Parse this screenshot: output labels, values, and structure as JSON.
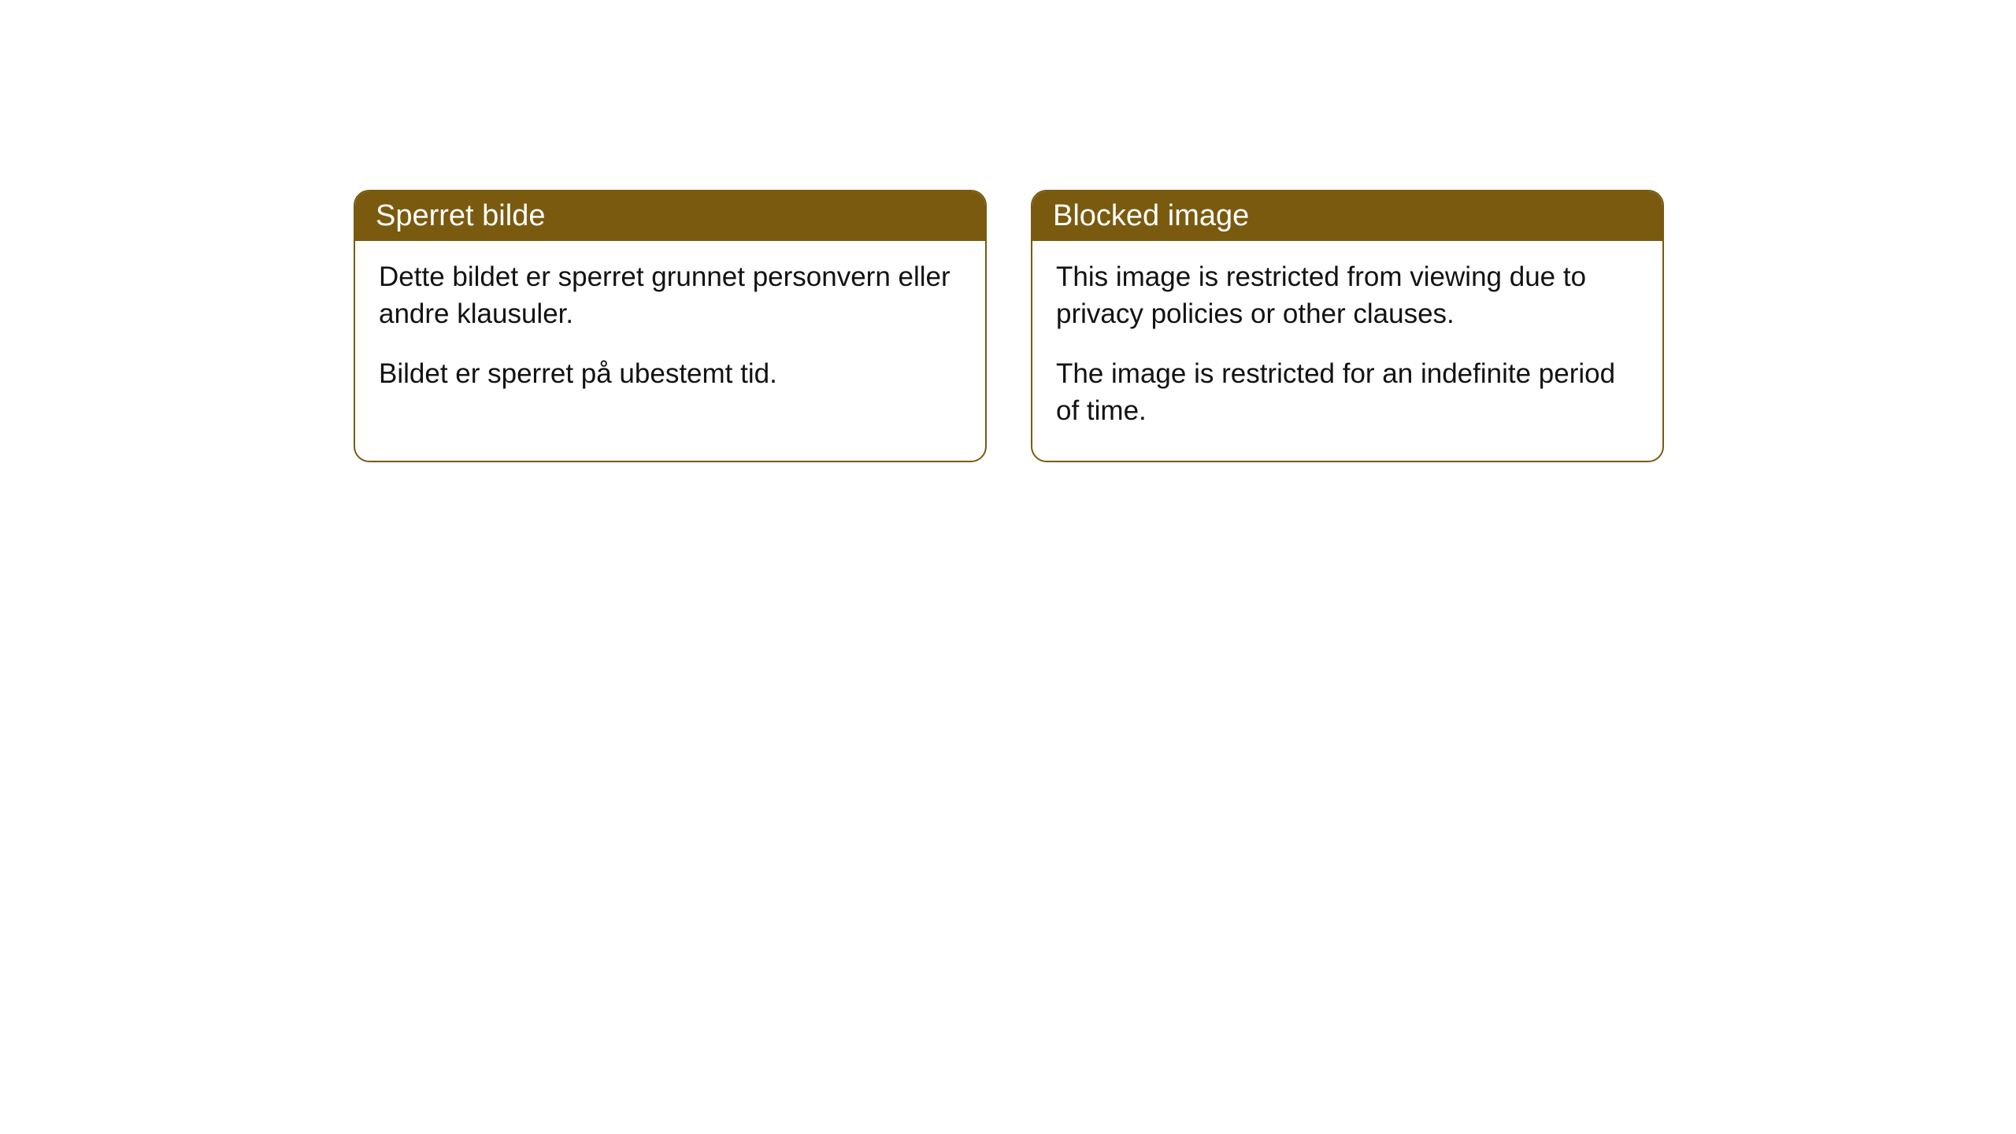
{
  "cards": [
    {
      "title": "Sperret bilde",
      "paragraph1": "Dette bildet er sperret grunnet personvern eller andre klausuler.",
      "paragraph2": "Bildet er sperret på ubestemt tid."
    },
    {
      "title": "Blocked image",
      "paragraph1": "This image is restricted from viewing due to privacy policies or other clauses.",
      "paragraph2": "The image is restricted for an indefinite period of time."
    }
  ],
  "style": {
    "header_bg": "#7a5a0f",
    "header_text_color": "#ffffff",
    "border_color": "#7a5a0f",
    "body_bg": "#ffffff",
    "body_text_color": "#121212",
    "border_radius": 20,
    "header_fontsize": 38,
    "body_fontsize": 35
  }
}
